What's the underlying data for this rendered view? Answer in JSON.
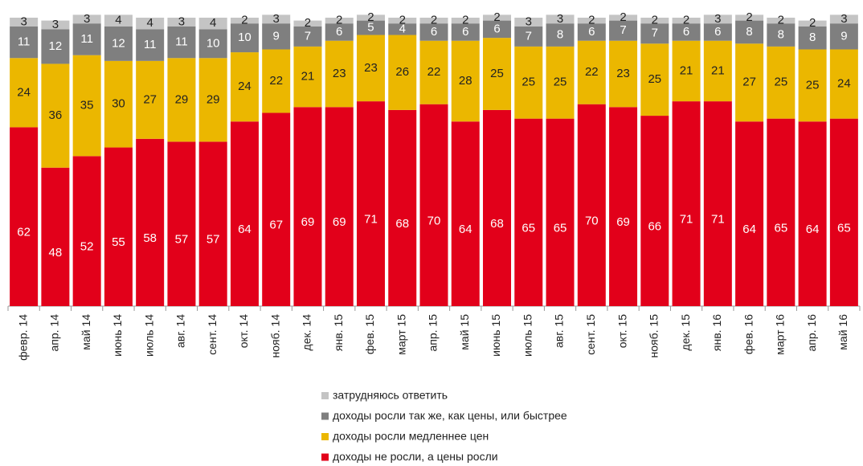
{
  "chart_data": {
    "type": "stacked_bar",
    "categories": [
      "февр. 14",
      "апр. 14",
      "май 14",
      "июнь 14",
      "июль 14",
      "авг. 14",
      "сент. 14",
      "окт. 14",
      "нояб. 14",
      "дек. 14",
      "янв. 15",
      "фев. 15",
      "март 15",
      "апр. 15",
      "май 15",
      "июнь 15",
      "июль 15",
      "авг. 15",
      "сент. 15",
      "окт. 15",
      "нояб. 15",
      "дек. 15",
      "янв. 16",
      "фев. 16",
      "март 16",
      "апр. 16",
      "май 16"
    ],
    "series": [
      {
        "name": "доходы не росли, а цены росли",
        "color": "#e2001a",
        "label_color": "#ffffff",
        "values": [
          62,
          48,
          52,
          55,
          58,
          57,
          57,
          64,
          67,
          69,
          69,
          71,
          68,
          70,
          64,
          68,
          65,
          65,
          70,
          69,
          66,
          71,
          71,
          64,
          65,
          64,
          65
        ]
      },
      {
        "name": "доходы росли медленнее цен",
        "color": "#ebb700",
        "label_color": "#222222",
        "values": [
          24,
          36,
          35,
          30,
          27,
          29,
          29,
          24,
          22,
          21,
          23,
          23,
          26,
          22,
          28,
          25,
          25,
          25,
          22,
          23,
          25,
          21,
          21,
          27,
          25,
          25,
          24
        ]
      },
      {
        "name": "доходы росли так же, как цены, или быстрее",
        "color": "#7f7f7f",
        "label_color": "#ffffff",
        "values": [
          11,
          12,
          11,
          12,
          11,
          11,
          10,
          10,
          9,
          7,
          6,
          5,
          4,
          6,
          6,
          6,
          7,
          8,
          6,
          7,
          7,
          6,
          6,
          8,
          8,
          8,
          9
        ]
      },
      {
        "name": "затрудняюсь ответить",
        "color": "#c4c4c4",
        "label_color": "#222222",
        "values": [
          3,
          3,
          3,
          4,
          4,
          3,
          4,
          2,
          3,
          2,
          2,
          2,
          2,
          2,
          2,
          2,
          3,
          3,
          2,
          2,
          2,
          2,
          3,
          2,
          2,
          2,
          3
        ]
      }
    ],
    "ylim": [
      0,
      100
    ]
  }
}
